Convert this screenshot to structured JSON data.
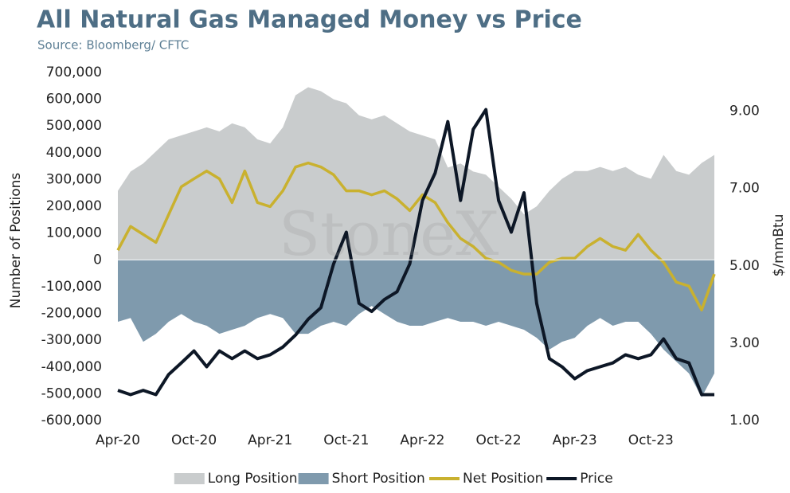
{
  "chart_data": {
    "type": "area-line",
    "title": "All Natural Gas Managed Money vs Price",
    "subtitle": "Source: Bloomberg/ CFTC",
    "watermark": "StoneX",
    "y_label": "Number of Positions",
    "y2_label": "$/mmBtu",
    "categories": [
      "Apr-20",
      null,
      null,
      null,
      null,
      null,
      "Oct-20",
      null,
      null,
      null,
      null,
      null,
      "Apr-21",
      null,
      null,
      null,
      null,
      null,
      "Oct-21",
      null,
      null,
      null,
      null,
      null,
      "Apr-22",
      null,
      null,
      null,
      null,
      null,
      "Oct-22",
      null,
      null,
      null,
      null,
      null,
      "Apr-23",
      null,
      null,
      null,
      null,
      null,
      "Oct-23",
      null,
      null,
      null,
      null,
      null
    ],
    "series": [
      {
        "name": "Long Position",
        "kind": "area",
        "color": "#c9cccd",
        "values": [
          258000,
          330000,
          360000,
          405000,
          450000,
          465000,
          480000,
          495000,
          480000,
          510000,
          495000,
          450000,
          435000,
          495000,
          615000,
          645000,
          630000,
          600000,
          585000,
          540000,
          525000,
          540000,
          510000,
          480000,
          465000,
          450000,
          345000,
          360000,
          330000,
          318000,
          273000,
          228000,
          170000,
          200000,
          258000,
          303000,
          332000,
          332000,
          347000,
          332000,
          347000,
          318000,
          303000,
          392000,
          332000,
          318000,
          362000,
          392000
        ]
      },
      {
        "name": "Short Position",
        "kind": "area",
        "color": "#7f9aad",
        "values": [
          -231000,
          -217000,
          -306000,
          -276000,
          -231000,
          -202000,
          -231000,
          -246000,
          -276000,
          -261000,
          -246000,
          -217000,
          -202000,
          -217000,
          -276000,
          -276000,
          -246000,
          -231000,
          -246000,
          -202000,
          -172000,
          -202000,
          -231000,
          -246000,
          -246000,
          -231000,
          -217000,
          -231000,
          -231000,
          -246000,
          -231000,
          -246000,
          -261000,
          -291000,
          -335000,
          -306000,
          -291000,
          -246000,
          -217000,
          -246000,
          -231000,
          -231000,
          -276000,
          -335000,
          -380000,
          -424000,
          -513000,
          -424000
        ]
      },
      {
        "name": "Net Position",
        "kind": "line",
        "color": "#c9b12f",
        "values": [
          36000,
          125000,
          95000,
          65000,
          169000,
          273000,
          303000,
          332000,
          303000,
          214000,
          332000,
          214000,
          199000,
          258000,
          347000,
          362000,
          347000,
          318000,
          258000,
          258000,
          243000,
          258000,
          228000,
          184000,
          243000,
          214000,
          139000,
          80000,
          50000,
          6000,
          -9000,
          -39000,
          -53000,
          -53000,
          -9000,
          6000,
          6000,
          50000,
          80000,
          50000,
          36000,
          95000,
          36000,
          -9000,
          -83000,
          -98000,
          -187000,
          -53000
        ]
      },
      {
        "name": "Price",
        "kind": "line",
        "axis": "y2",
        "color": "#0d1726",
        "values": [
          1.78,
          1.67,
          1.78,
          1.67,
          2.19,
          2.49,
          2.8,
          2.39,
          2.8,
          2.6,
          2.8,
          2.6,
          2.7,
          2.9,
          3.21,
          3.62,
          3.92,
          5.05,
          5.87,
          4.03,
          3.82,
          4.13,
          4.33,
          5.05,
          6.69,
          7.4,
          8.73,
          6.69,
          8.53,
          9.04,
          6.69,
          5.87,
          6.89,
          4.03,
          2.6,
          2.39,
          2.08,
          2.29,
          2.39,
          2.49,
          2.7,
          2.6,
          2.7,
          3.11,
          2.6,
          2.49,
          1.67,
          1.67
        ]
      }
    ],
    "ylim": [
      -600000,
      700000
    ],
    "yticks": [
      {
        "value": -600000,
        "label": "-600,000"
      },
      {
        "value": -500000,
        "label": "-500,000"
      },
      {
        "value": -400000,
        "label": "-400,000"
      },
      {
        "value": -300000,
        "label": "-300,000"
      },
      {
        "value": -200000,
        "label": "-200,000"
      },
      {
        "value": -100000,
        "label": "-100,000"
      },
      0,
      {
        "value": 100000,
        "label": "100,000"
      },
      {
        "value": 200000,
        "label": "200,000"
      },
      {
        "value": 300000,
        "label": "300,000"
      },
      {
        "value": 400000,
        "label": "400,000"
      },
      {
        "value": 500000,
        "label": "500,000"
      },
      {
        "value": 600000,
        "label": "600,000"
      },
      {
        "value": 700000,
        "label": "700,000"
      }
    ],
    "y2lim": [
      1,
      10
    ],
    "y2ticks": [
      {
        "value": 1,
        "label": "1.00"
      },
      {
        "value": 3,
        "label": "3.00"
      },
      {
        "value": 5,
        "label": "5.00"
      },
      {
        "value": 7,
        "label": "7.00"
      },
      {
        "value": 9,
        "label": "9.00"
      }
    ],
    "legend": "bottom"
  }
}
